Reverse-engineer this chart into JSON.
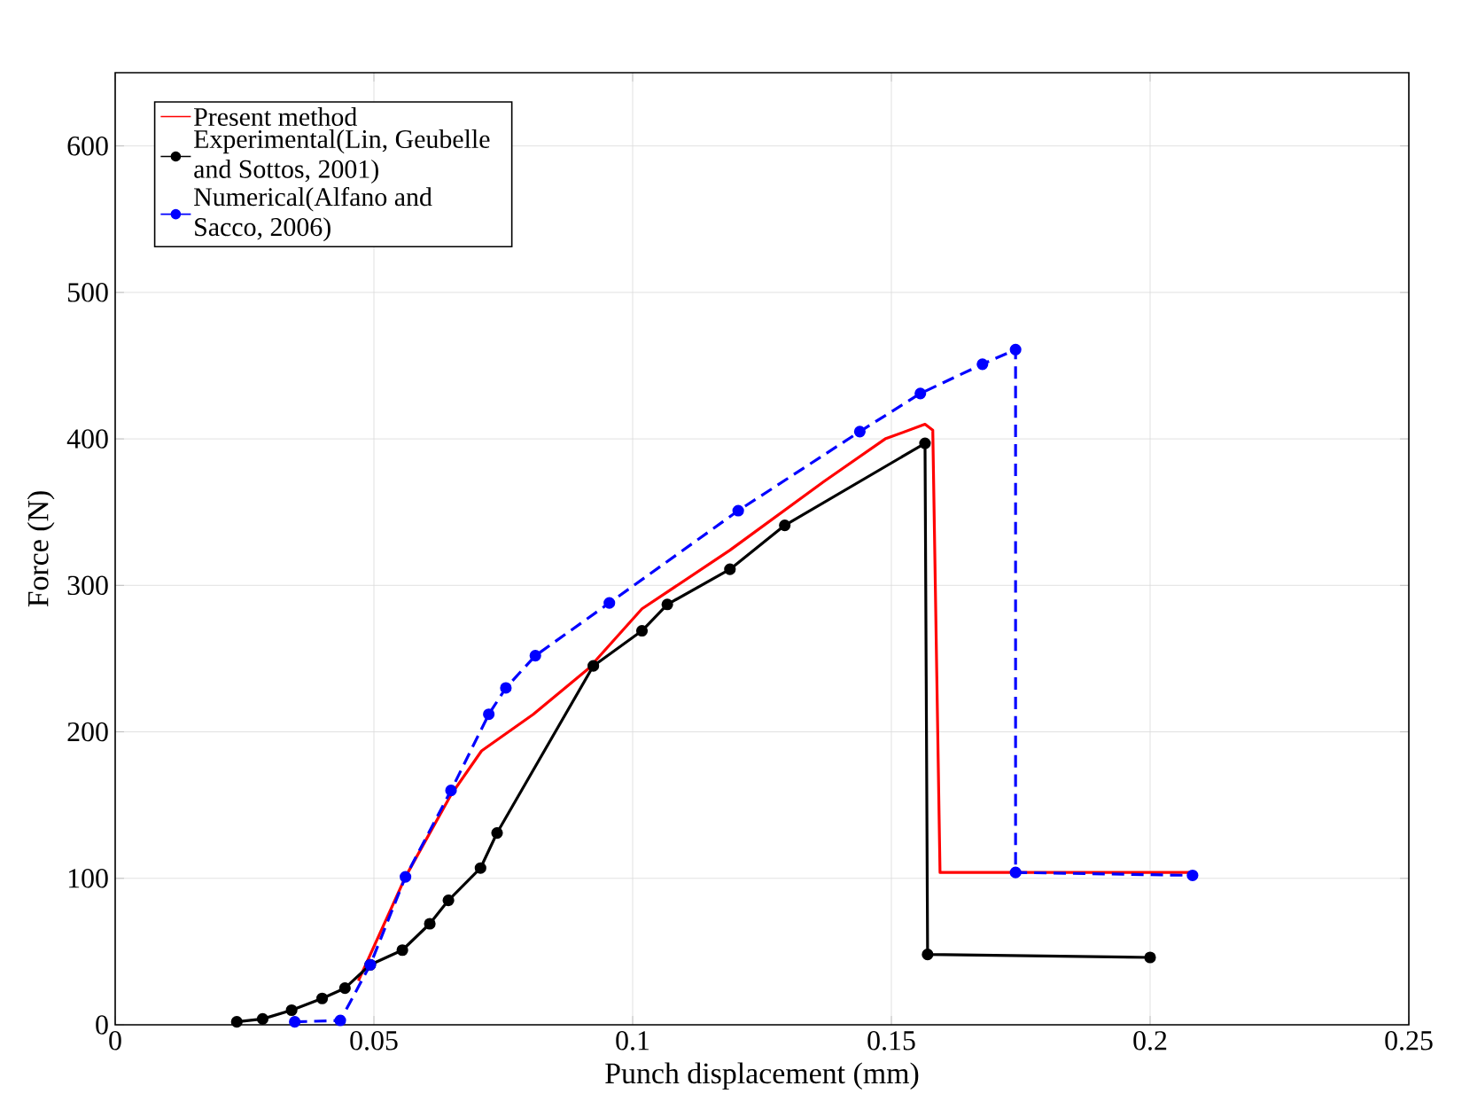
{
  "chart_data": {
    "type": "line",
    "xlabel": "Punch displacement (mm)",
    "ylabel": "Force (N)",
    "xlim": [
      0,
      0.25
    ],
    "ylim": [
      0,
      650
    ],
    "xticks": [
      0,
      0.05,
      0.1,
      0.15,
      0.2,
      0.25
    ],
    "yticks": [
      0,
      100,
      200,
      300,
      400,
      500,
      600
    ],
    "grid": true,
    "legend": "top left",
    "series": [
      {
        "name": "Present method",
        "color": "#ff0000",
        "marker": "none",
        "line_style": "solid",
        "x": [
          0.047,
          0.0561,
          0.0649,
          0.0708,
          0.0808,
          0.0914,
          0.1018,
          0.1188,
          0.137,
          0.1488,
          0.1565,
          0.158,
          0.1594,
          0.2082
        ],
        "values": [
          30,
          101,
          157,
          187,
          212,
          243,
          284,
          324,
          371,
          400,
          410,
          406,
          104,
          104
        ]
      },
      {
        "name": "Experimental(Lin, Geubelle and Sottos, 2001)",
        "color": "#000000",
        "marker": "circle",
        "line_style": "solid",
        "x": [
          0.0235,
          0.0285,
          0.0341,
          0.04,
          0.0444,
          0.0493,
          0.0555,
          0.0608,
          0.0644,
          0.0706,
          0.0738,
          0.0924,
          0.1018,
          0.1067,
          0.1188,
          0.1294,
          0.1565,
          0.157,
          0.2
        ],
        "values": [
          2,
          4,
          10,
          18,
          25,
          41,
          51,
          69,
          85,
          107,
          131,
          245,
          269,
          287,
          311,
          341,
          397,
          48,
          46
        ]
      },
      {
        "name": "Numerical(Alfano and Sacco, 2006)",
        "color": "#0000ff",
        "marker": "circle",
        "line_style": "dashed",
        "x": [
          0.0347,
          0.0435,
          0.0493,
          0.0561,
          0.0649,
          0.0722,
          0.0755,
          0.0812,
          0.0955,
          0.1204,
          0.1439,
          0.1556,
          0.1676,
          0.174,
          0.174,
          0.2082
        ],
        "values": [
          2,
          3,
          41,
          101,
          160,
          212,
          230,
          252,
          288,
          351,
          405,
          431,
          451,
          461,
          104,
          102
        ]
      }
    ]
  }
}
